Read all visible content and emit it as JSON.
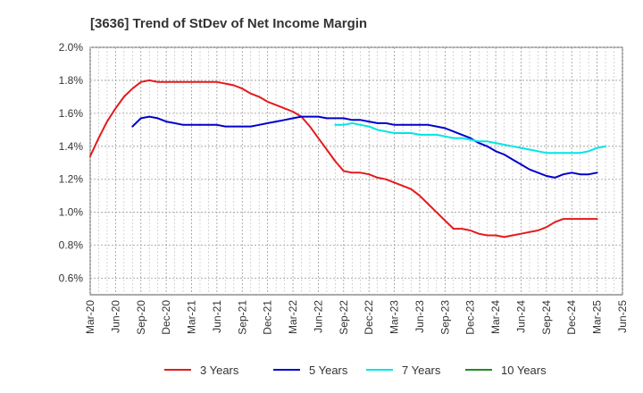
{
  "chart_data": {
    "type": "line",
    "title": "[3636]  Trend of StDev of Net Income Margin",
    "xlabel": "",
    "ylabel": "",
    "ylim": [
      0.5,
      2.0
    ],
    "y_ticks": [
      "2.0%",
      "1.8%",
      "1.6%",
      "1.4%",
      "1.2%",
      "1.0%",
      "0.8%",
      "0.6%"
    ],
    "y_tick_values": [
      2.0,
      1.8,
      1.6,
      1.4,
      1.2,
      1.0,
      0.8,
      0.6
    ],
    "x_ticks": [
      "Mar-20",
      "Jun-20",
      "Sep-20",
      "Dec-20",
      "Mar-21",
      "Jun-21",
      "Sep-21",
      "Dec-21",
      "Mar-22",
      "Jun-22",
      "Sep-22",
      "Dec-22",
      "Mar-23",
      "Jun-23",
      "Sep-23",
      "Dec-23",
      "Mar-24",
      "Jun-24",
      "Sep-24",
      "Dec-24",
      "Mar-25",
      "Jun-25"
    ],
    "grid": true,
    "legend_position": "bottom",
    "series": [
      {
        "name": "3 Years",
        "color": "#e41a1c",
        "points": [
          [
            "Mar-20",
            1.34
          ],
          [
            "Apr-20",
            1.45
          ],
          [
            "May-20",
            1.55
          ],
          [
            "Jun-20",
            1.63
          ],
          [
            "Jul-20",
            1.7
          ],
          [
            "Aug-20",
            1.75
          ],
          [
            "Sep-20",
            1.79
          ],
          [
            "Oct-20",
            1.8
          ],
          [
            "Nov-20",
            1.79
          ],
          [
            "Dec-20",
            1.79
          ],
          [
            "Jan-21",
            1.79
          ],
          [
            "Feb-21",
            1.79
          ],
          [
            "Mar-21",
            1.79
          ],
          [
            "Apr-21",
            1.79
          ],
          [
            "May-21",
            1.79
          ],
          [
            "Jun-21",
            1.79
          ],
          [
            "Jul-21",
            1.78
          ],
          [
            "Aug-21",
            1.77
          ],
          [
            "Sep-21",
            1.75
          ],
          [
            "Oct-21",
            1.72
          ],
          [
            "Nov-21",
            1.7
          ],
          [
            "Dec-21",
            1.67
          ],
          [
            "Jan-22",
            1.65
          ],
          [
            "Feb-22",
            1.63
          ],
          [
            "Mar-22",
            1.61
          ],
          [
            "Apr-22",
            1.58
          ],
          [
            "May-22",
            1.52
          ],
          [
            "Jun-22",
            1.45
          ],
          [
            "Jul-22",
            1.38
          ],
          [
            "Aug-22",
            1.31
          ],
          [
            "Sep-22",
            1.25
          ],
          [
            "Oct-22",
            1.24
          ],
          [
            "Nov-22",
            1.24
          ],
          [
            "Dec-22",
            1.23
          ],
          [
            "Jan-23",
            1.21
          ],
          [
            "Feb-23",
            1.2
          ],
          [
            "Mar-23",
            1.18
          ],
          [
            "Apr-23",
            1.16
          ],
          [
            "May-23",
            1.14
          ],
          [
            "Jun-23",
            1.1
          ],
          [
            "Jul-23",
            1.05
          ],
          [
            "Aug-23",
            1.0
          ],
          [
            "Sep-23",
            0.95
          ],
          [
            "Oct-23",
            0.9
          ],
          [
            "Nov-23",
            0.9
          ],
          [
            "Dec-23",
            0.89
          ],
          [
            "Jan-24",
            0.87
          ],
          [
            "Feb-24",
            0.86
          ],
          [
            "Mar-24",
            0.86
          ],
          [
            "Apr-24",
            0.85
          ],
          [
            "May-24",
            0.86
          ],
          [
            "Jun-24",
            0.87
          ],
          [
            "Jul-24",
            0.88
          ],
          [
            "Aug-24",
            0.89
          ],
          [
            "Sep-24",
            0.91
          ],
          [
            "Oct-24",
            0.94
          ],
          [
            "Nov-24",
            0.96
          ],
          [
            "Dec-24",
            0.96
          ],
          [
            "Jan-25",
            0.96
          ],
          [
            "Feb-25",
            0.96
          ],
          [
            "Mar-25",
            0.96
          ]
        ]
      },
      {
        "name": "5 Years",
        "color": "#0000cc",
        "points": [
          [
            "Mar-20",
            null
          ],
          [
            "Aug-20",
            1.52
          ],
          [
            "Sep-20",
            1.57
          ],
          [
            "Oct-20",
            1.58
          ],
          [
            "Nov-20",
            1.57
          ],
          [
            "Dec-20",
            1.55
          ],
          [
            "Jan-21",
            1.54
          ],
          [
            "Feb-21",
            1.53
          ],
          [
            "Mar-21",
            1.53
          ],
          [
            "Apr-21",
            1.53
          ],
          [
            "May-21",
            1.53
          ],
          [
            "Jun-21",
            1.53
          ],
          [
            "Jul-21",
            1.52
          ],
          [
            "Aug-21",
            1.52
          ],
          [
            "Sep-21",
            1.52
          ],
          [
            "Oct-21",
            1.52
          ],
          [
            "Nov-21",
            1.53
          ],
          [
            "Dec-21",
            1.54
          ],
          [
            "Jan-22",
            1.55
          ],
          [
            "Feb-22",
            1.56
          ],
          [
            "Mar-22",
            1.57
          ],
          [
            "Apr-22",
            1.58
          ],
          [
            "May-22",
            1.58
          ],
          [
            "Jun-22",
            1.58
          ],
          [
            "Jul-22",
            1.57
          ],
          [
            "Aug-22",
            1.57
          ],
          [
            "Sep-22",
            1.57
          ],
          [
            "Oct-22",
            1.56
          ],
          [
            "Nov-22",
            1.56
          ],
          [
            "Dec-22",
            1.55
          ],
          [
            "Jan-23",
            1.54
          ],
          [
            "Feb-23",
            1.54
          ],
          [
            "Mar-23",
            1.53
          ],
          [
            "Apr-23",
            1.53
          ],
          [
            "May-23",
            1.53
          ],
          [
            "Jun-23",
            1.53
          ],
          [
            "Jul-23",
            1.53
          ],
          [
            "Aug-23",
            1.52
          ],
          [
            "Sep-23",
            1.51
          ],
          [
            "Oct-23",
            1.49
          ],
          [
            "Nov-23",
            1.47
          ],
          [
            "Dec-23",
            1.45
          ],
          [
            "Jan-24",
            1.42
          ],
          [
            "Feb-24",
            1.4
          ],
          [
            "Mar-24",
            1.37
          ],
          [
            "Apr-24",
            1.35
          ],
          [
            "May-24",
            1.32
          ],
          [
            "Jun-24",
            1.29
          ],
          [
            "Jul-24",
            1.26
          ],
          [
            "Aug-24",
            1.24
          ],
          [
            "Sep-24",
            1.22
          ],
          [
            "Oct-24",
            1.21
          ],
          [
            "Nov-24",
            1.23
          ],
          [
            "Dec-24",
            1.24
          ],
          [
            "Jan-25",
            1.23
          ],
          [
            "Feb-25",
            1.23
          ],
          [
            "Mar-25",
            1.24
          ]
        ]
      },
      {
        "name": "7 Years",
        "color": "#00e5e5",
        "points": [
          [
            "Aug-22",
            1.53
          ],
          [
            "Sep-22",
            1.53
          ],
          [
            "Oct-22",
            1.54
          ],
          [
            "Nov-22",
            1.53
          ],
          [
            "Dec-22",
            1.52
          ],
          [
            "Jan-23",
            1.5
          ],
          [
            "Feb-23",
            1.49
          ],
          [
            "Mar-23",
            1.48
          ],
          [
            "Apr-23",
            1.48
          ],
          [
            "May-23",
            1.48
          ],
          [
            "Jun-23",
            1.47
          ],
          [
            "Jul-23",
            1.47
          ],
          [
            "Aug-23",
            1.47
          ],
          [
            "Sep-23",
            1.46
          ],
          [
            "Oct-23",
            1.45
          ],
          [
            "Nov-23",
            1.45
          ],
          [
            "Dec-23",
            1.44
          ],
          [
            "Jan-24",
            1.43
          ],
          [
            "Feb-24",
            1.43
          ],
          [
            "Mar-24",
            1.42
          ],
          [
            "Apr-24",
            1.41
          ],
          [
            "May-24",
            1.4
          ],
          [
            "Jun-24",
            1.39
          ],
          [
            "Jul-24",
            1.38
          ],
          [
            "Aug-24",
            1.37
          ],
          [
            "Sep-24",
            1.36
          ],
          [
            "Oct-24",
            1.36
          ],
          [
            "Nov-24",
            1.36
          ],
          [
            "Dec-24",
            1.36
          ],
          [
            "Jan-25",
            1.36
          ],
          [
            "Feb-25",
            1.37
          ],
          [
            "Mar-25",
            1.39
          ],
          [
            "Apr-25",
            1.4
          ]
        ]
      },
      {
        "name": "10 Years",
        "color": "#228b22",
        "points": []
      }
    ]
  }
}
